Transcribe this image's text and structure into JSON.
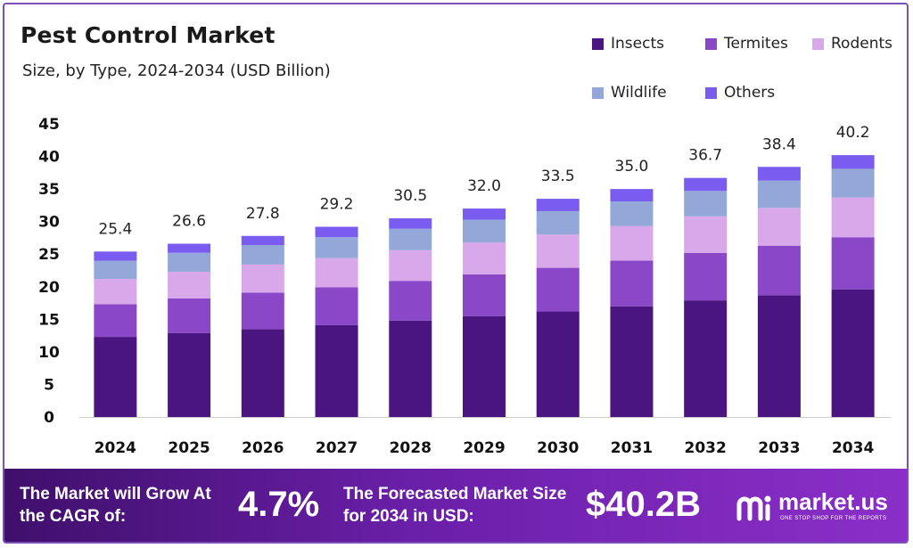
{
  "header": {
    "title": "Pest Control Market",
    "subtitle": "Size, by Type, 2024-2034 (USD Billion)"
  },
  "colors": {
    "Insects": "#4a1580",
    "Termites": "#8a47c8",
    "Rodents": "#d8a8ea",
    "Wildlife": "#93a8d8",
    "Others": "#7a5cf0",
    "banner_start": "#3f0f6b",
    "banner_end": "#8b2fc9"
  },
  "chart_data": {
    "type": "bar",
    "stacked": true,
    "categories": [
      "2024",
      "2025",
      "2026",
      "2027",
      "2028",
      "2029",
      "2030",
      "2031",
      "2032",
      "2033",
      "2034"
    ],
    "series": [
      {
        "name": "Insects",
        "values": [
          12.3,
          12.9,
          13.5,
          14.1,
          14.8,
          15.5,
          16.2,
          17.0,
          17.9,
          18.7,
          19.6
        ]
      },
      {
        "name": "Termites",
        "values": [
          5.0,
          5.3,
          5.6,
          5.8,
          6.1,
          6.4,
          6.7,
          7.0,
          7.3,
          7.6,
          8.0
        ]
      },
      {
        "name": "Rodents",
        "values": [
          3.9,
          4.1,
          4.3,
          4.5,
          4.7,
          4.9,
          5.1,
          5.3,
          5.6,
          5.8,
          6.1
        ]
      },
      {
        "name": "Wildlife",
        "values": [
          2.8,
          2.9,
          3.0,
          3.2,
          3.3,
          3.5,
          3.6,
          3.8,
          3.9,
          4.2,
          4.4
        ]
      },
      {
        "name": "Others",
        "values": [
          1.4,
          1.4,
          1.4,
          1.6,
          1.6,
          1.7,
          1.9,
          1.9,
          2.0,
          2.1,
          2.1
        ]
      }
    ],
    "totals": [
      "25.4",
      "26.6",
      "27.8",
      "29.2",
      "30.5",
      "32.0",
      "33.5",
      "35.0",
      "36.7",
      "38.4",
      "40.2"
    ],
    "yticks": [
      0,
      5,
      10,
      15,
      20,
      25,
      30,
      35,
      40,
      45
    ],
    "ylim": [
      0,
      45
    ],
    "grid": false,
    "legend": "top-right"
  },
  "banner": {
    "cagr_label": "The Market will Grow At the CAGR of:",
    "cagr_value": "4.7%",
    "forecast_label": "The Forecasted Market Size for 2034 in USD:",
    "forecast_value": "$40.2B",
    "brand_name": "market.us",
    "brand_tagline": "ONE STOP SHOP FOR THE REPORTS",
    "brand_icon": "market-us-logo-icon"
  }
}
